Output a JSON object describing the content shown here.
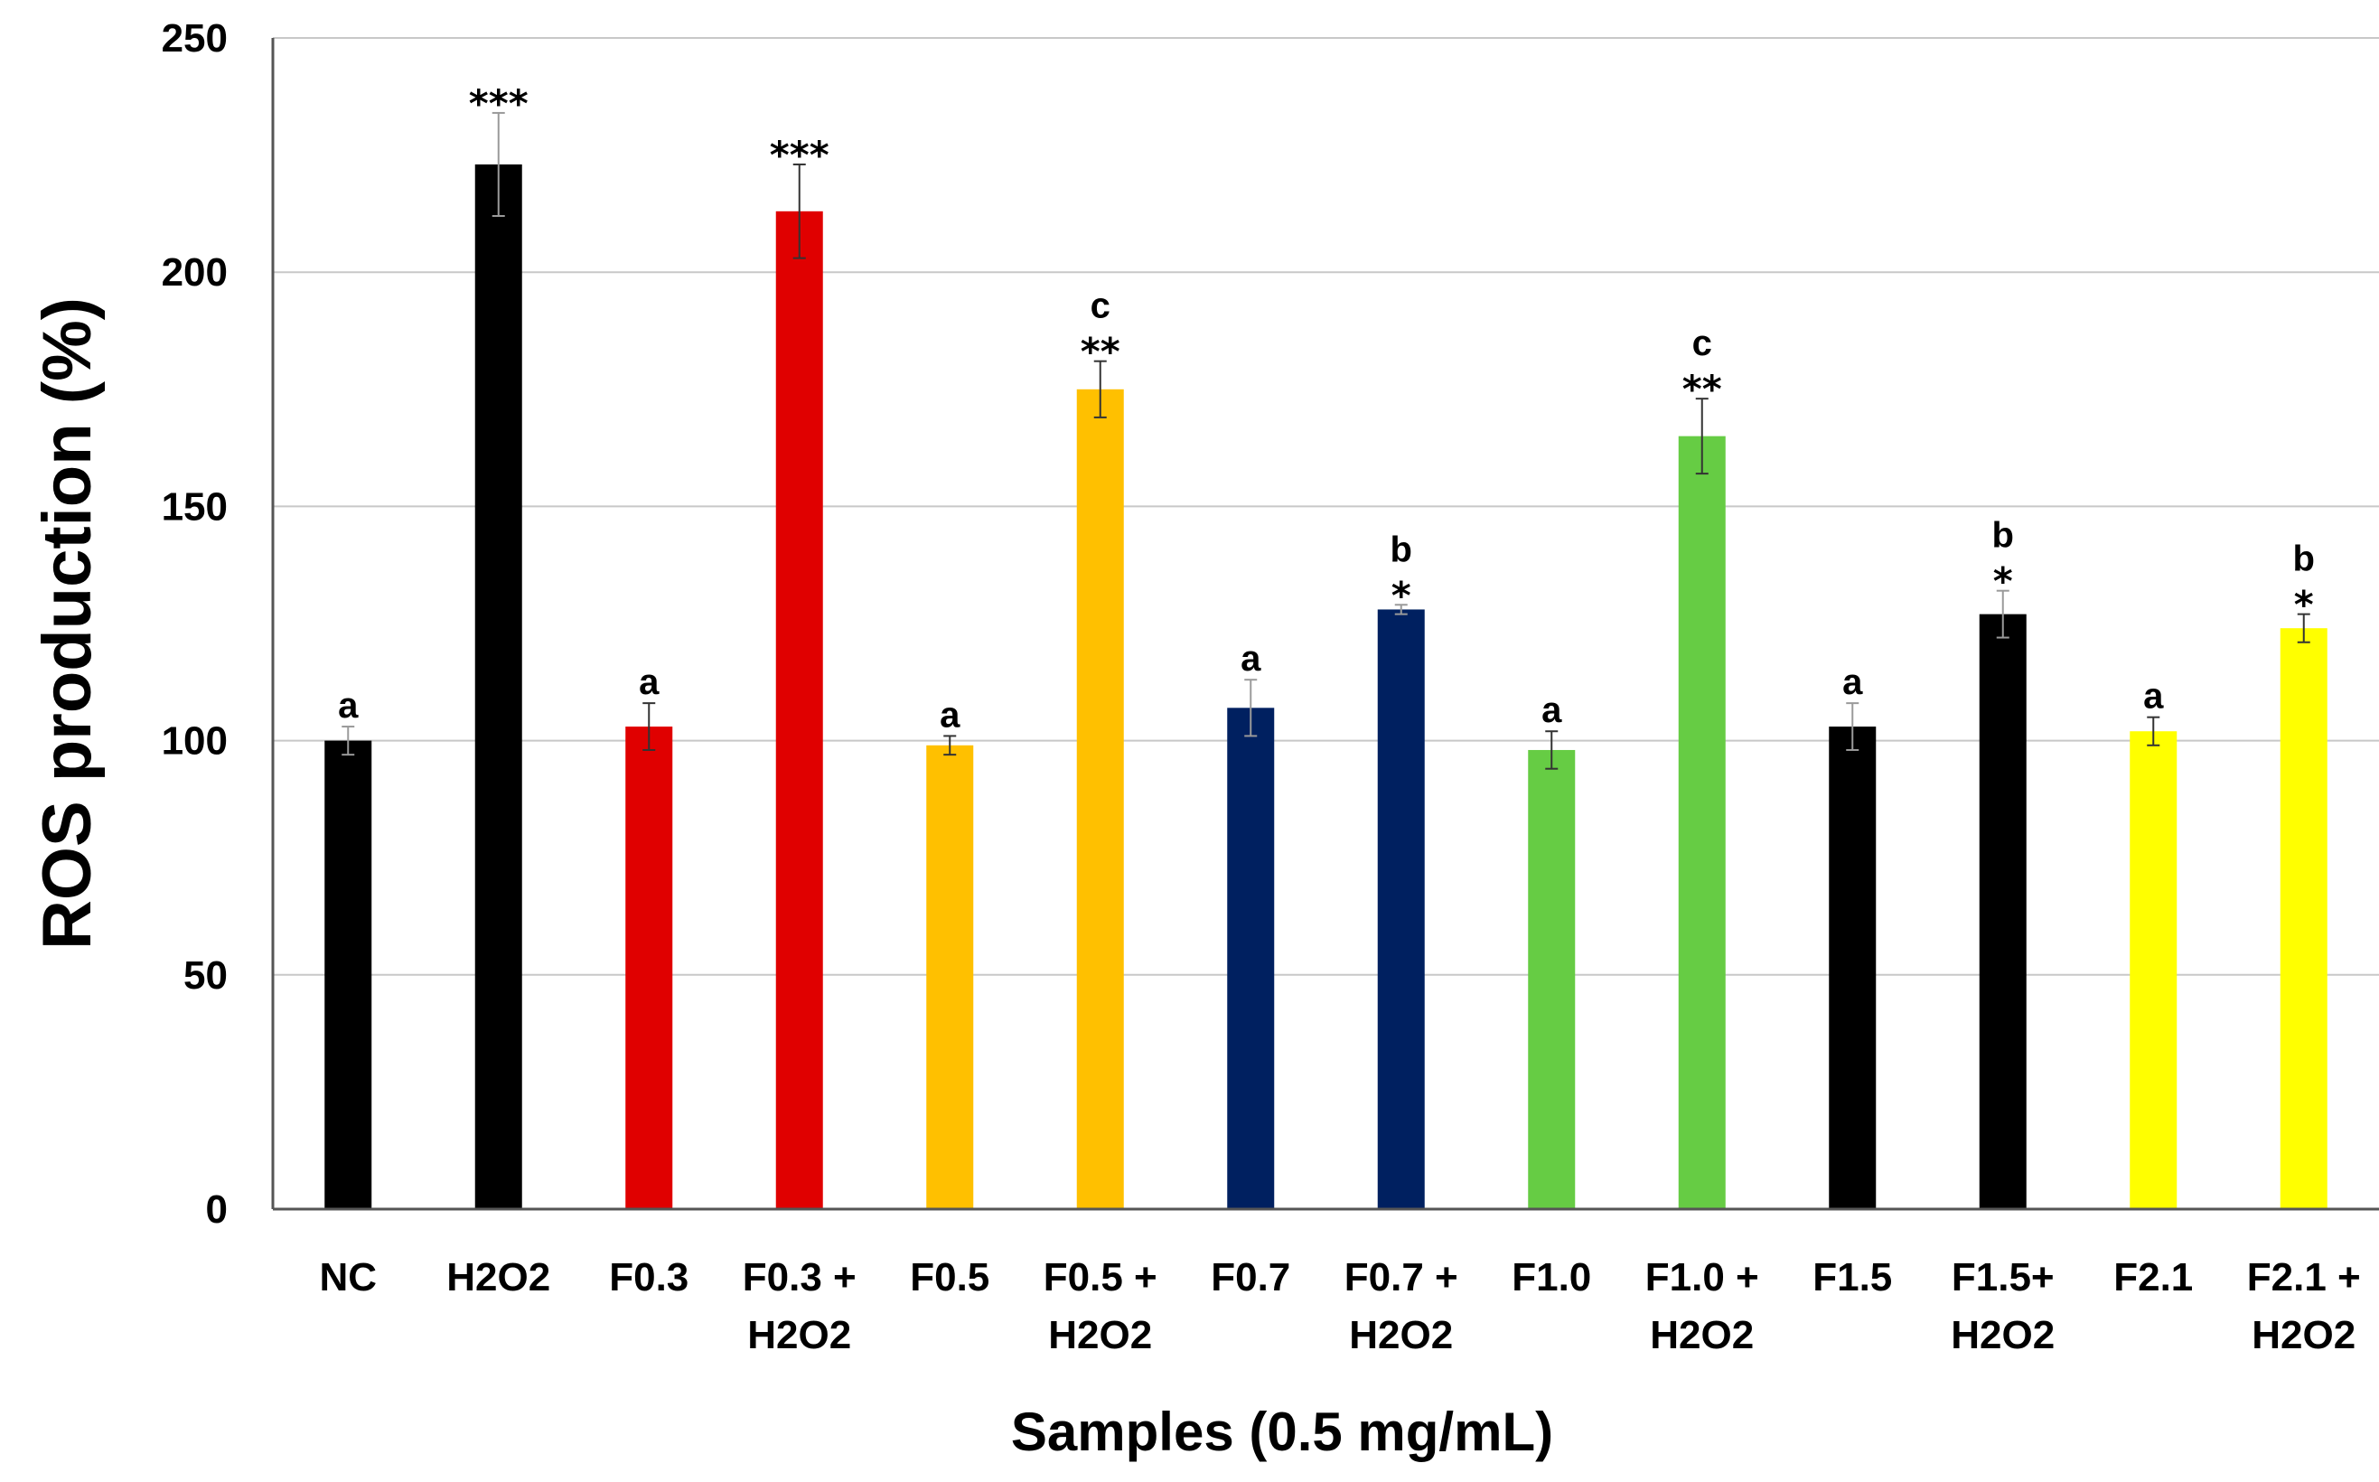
{
  "chart_data": {
    "type": "bar",
    "title": "",
    "xlabel": "Samples (0.5 mg/mL)",
    "ylabel": "ROS production (%)",
    "ylim": [
      0,
      250
    ],
    "yticks": [
      0,
      50,
      100,
      150,
      200,
      250
    ],
    "grid": "horizontal",
    "categories": [
      {
        "line1": "NC",
        "line2": ""
      },
      {
        "line1": "H2O2",
        "line2": ""
      },
      {
        "line1": "F0.3",
        "line2": ""
      },
      {
        "line1": "F0.3 +",
        "line2": "H2O2"
      },
      {
        "line1": "F0.5",
        "line2": ""
      },
      {
        "line1": "F0.5 +",
        "line2": "H2O2"
      },
      {
        "line1": "F0.7",
        "line2": ""
      },
      {
        "line1": "F0.7 +",
        "line2": "H2O2"
      },
      {
        "line1": "F1.0",
        "line2": ""
      },
      {
        "line1": "F1.0 +",
        "line2": "H2O2"
      },
      {
        "line1": "F1.5",
        "line2": ""
      },
      {
        "line1": "F1.5+",
        "line2": "H2O2"
      },
      {
        "line1": "F2.1",
        "line2": ""
      },
      {
        "line1": "F2.1 +",
        "line2": "H2O2"
      }
    ],
    "values": [
      100,
      223,
      103,
      213,
      99,
      175,
      107,
      128,
      98,
      165,
      103,
      127,
      102,
      124
    ],
    "errors": [
      3,
      11,
      5,
      10,
      2,
      6,
      6,
      1,
      4,
      8,
      5,
      5,
      3,
      3
    ],
    "colors": [
      "#000000",
      "#000000",
      "#e00000",
      "#e00000",
      "#ffc000",
      "#ffc000",
      "#002060",
      "#002060",
      "#66cc44",
      "#66cc44",
      "#000000",
      "#000000",
      "#ffff00",
      "#ffff00"
    ],
    "stars": [
      "",
      "***",
      "",
      "***",
      "",
      "**",
      "",
      "*",
      "",
      "**",
      "",
      "*",
      "",
      "*"
    ],
    "letters": [
      "a",
      "",
      "a",
      "",
      "a",
      "c",
      "a",
      "b",
      "a",
      "c",
      "a",
      "b",
      "a",
      "b"
    ]
  }
}
